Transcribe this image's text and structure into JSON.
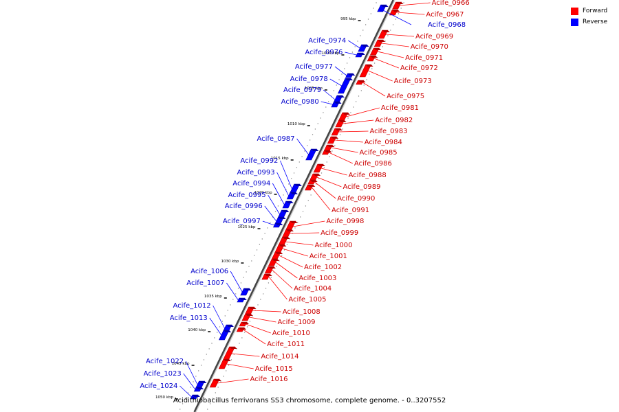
{
  "legend": {
    "forward_label": "Forward",
    "reverse_label": "Reverse",
    "forward_color": "#ff0000",
    "reverse_color": "#0000ff"
  },
  "caption": "Acidithiobacillus ferrivorans SS3 chromosome, complete genome. - 0..3207552",
  "ticks": [
    "995 kbp",
    "1000 kbp",
    "1005 kbp",
    "1010 kbp",
    "1015 kbp",
    "1020 kbp",
    "1025 kbp",
    "1030 kbp",
    "1035 kbp",
    "1040 kbp",
    "1045 kbp",
    "1050 kbp"
  ],
  "forward_genes": [
    "Acife_0966",
    "Acife_0967",
    "Acife_0969",
    "Acife_0970",
    "Acife_0971",
    "Acife_0972",
    "Acife_0973",
    "Acife_0975",
    "Acife_0981",
    "Acife_0982",
    "Acife_0983",
    "Acife_0984",
    "Acife_0985",
    "Acife_0986",
    "Acife_0988",
    "Acife_0989",
    "Acife_0990",
    "Acife_0991",
    "Acife_0998",
    "Acife_0999",
    "Acife_1000",
    "Acife_1001",
    "Acife_1002",
    "Acife_1003",
    "Acife_1004",
    "Acife_1005",
    "Acife_1008",
    "Acife_1009",
    "Acife_1010",
    "Acife_1011",
    "Acife_1014",
    "Acife_1015",
    "Acife_1016"
  ],
  "reverse_genes": [
    "Acife_0968",
    "Acife_0974",
    "Acife_0976",
    "Acife_0977",
    "Acife_0978",
    "Acife_0979",
    "Acife_0980",
    "Acife_0987",
    "Acife_0992",
    "Acife_0993",
    "Acife_0994",
    "Acife_0995",
    "Acife_0996",
    "Acife_0997",
    "Acife_1006",
    "Acife_1007",
    "Acife_1012",
    "Acife_1013",
    "Acife_1022",
    "Acife_1023",
    "Acife_1024"
  ]
}
